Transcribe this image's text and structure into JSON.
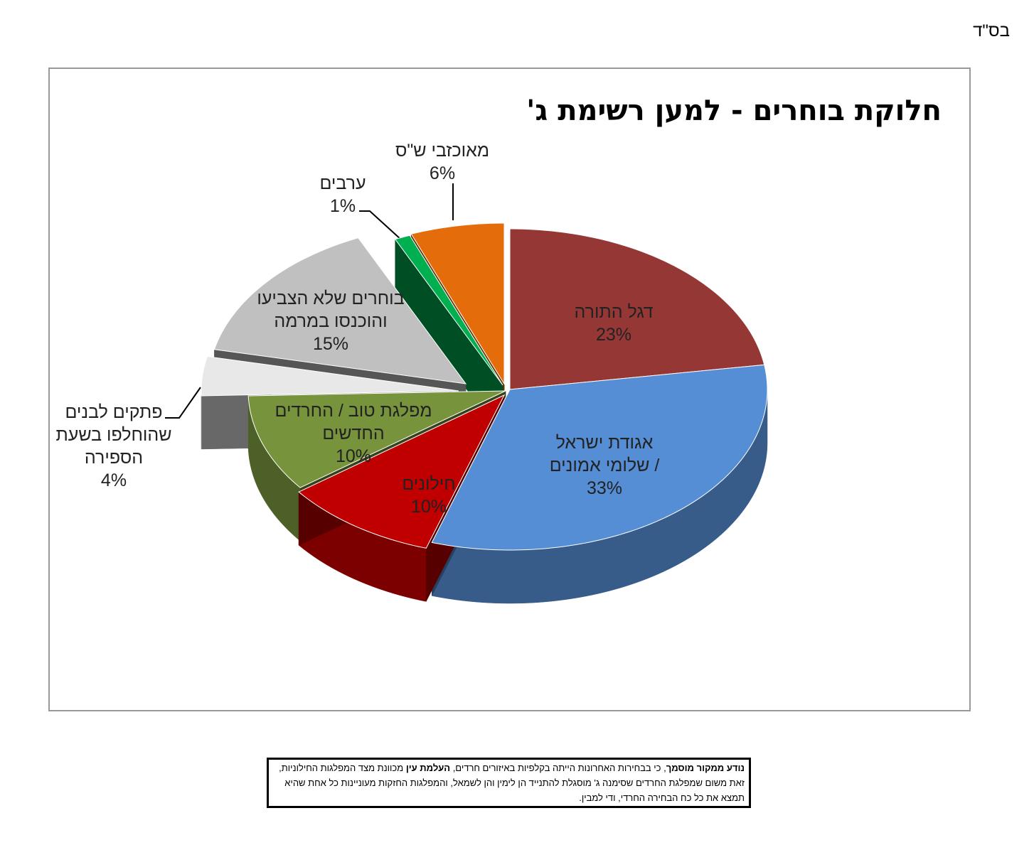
{
  "page_header": "בס\"ד",
  "chart_data": {
    "type": "pie3d",
    "title": "חלוקת בוחרים - למען רשימת ג'",
    "categories": [
      "דגל התורה",
      "אגודת ישראל\n/ שלומי אמונים",
      "חילונים",
      "מפלגת טוב / החרדים\nהחדשים",
      "פתקים לבנים\nשהוחלפו בשעת\nהספירה",
      "בוחרים שלא הצביעו\nוהוכנסו במרמה",
      "ערבים",
      "מאוכזבי ש\"ס"
    ],
    "values": [
      23,
      33,
      10,
      10,
      4,
      15,
      1,
      6
    ],
    "value_labels": [
      "23%",
      "33%",
      "10%",
      "10%",
      "4%",
      "15%",
      "1%",
      "6%"
    ],
    "colors": [
      "#953735",
      "#558ed5",
      "#c00000",
      "#77933c",
      "#e8e8e8",
      "#c0c0c0",
      "#00b050",
      "#e46c0a"
    ]
  },
  "footnote": {
    "segments": [
      "נודע ממקור מוסמך",
      ", כי בבחירות האחרונות הייתה בקלפיות באיזורים חרדים, ",
      "העלמת עין",
      " מכוונת מצד המפלגות החילוניות, זאת משום שמפלגת החרדים שסימנה ג' מוסגלת להתנייד הן לימין והן לשמאל, והמפלגות החזקות מעוניינות כל אחת שהיא תמצא את כל כח הבחירה החרדי, ודי למבין."
    ]
  }
}
